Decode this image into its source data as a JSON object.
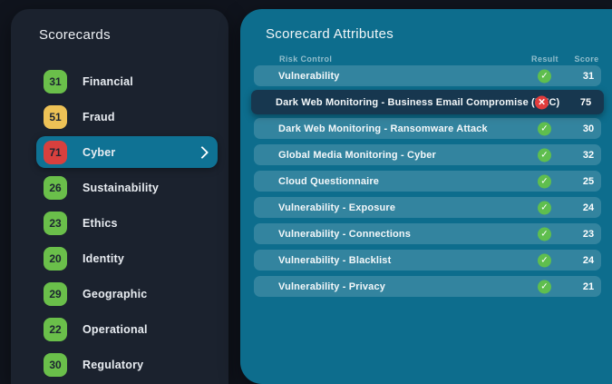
{
  "sidebar": {
    "title": "Scorecards",
    "items": [
      {
        "score": "31",
        "label": "Financial",
        "severity": "green",
        "selected": false
      },
      {
        "score": "51",
        "label": "Fraud",
        "severity": "amber",
        "selected": false
      },
      {
        "score": "71",
        "label": "Cyber",
        "severity": "red",
        "selected": true
      },
      {
        "score": "26",
        "label": "Sustainability",
        "severity": "green",
        "selected": false
      },
      {
        "score": "23",
        "label": "Ethics",
        "severity": "green",
        "selected": false
      },
      {
        "score": "20",
        "label": "Identity",
        "severity": "green",
        "selected": false
      },
      {
        "score": "29",
        "label": "Geographic",
        "severity": "green",
        "selected": false
      },
      {
        "score": "22",
        "label": "Operational",
        "severity": "green",
        "selected": false
      },
      {
        "score": "30",
        "label": "Regulatory",
        "severity": "green",
        "selected": false
      }
    ]
  },
  "main": {
    "title": "Scorecard Attributes",
    "columns": {
      "risk_control": "Risk Control",
      "result": "Result",
      "score": "Score"
    },
    "rows": [
      {
        "name": "Vulnerability",
        "result": "pass",
        "score": "31",
        "selected": false
      },
      {
        "name": "Dark Web Monitoring - Business Email Compromise (BEC)",
        "result": "fail",
        "score": "75",
        "selected": true
      },
      {
        "name": "Dark Web Monitoring - Ransomware Attack",
        "result": "pass",
        "score": "30",
        "selected": false
      },
      {
        "name": "Global Media Monitoring - Cyber",
        "result": "pass",
        "score": "32",
        "selected": false
      },
      {
        "name": "Cloud Questionnaire",
        "result": "pass",
        "score": "25",
        "selected": false
      },
      {
        "name": "Vulnerability - Exposure",
        "result": "pass",
        "score": "24",
        "selected": false
      },
      {
        "name": "Vulnerability - Connections",
        "result": "pass",
        "score": "23",
        "selected": false
      },
      {
        "name": "Vulnerability - Blacklist",
        "result": "pass",
        "score": "24",
        "selected": false
      },
      {
        "name": "Vulnerability - Privacy",
        "result": "pass",
        "score": "21",
        "selected": false
      }
    ]
  },
  "icons": {
    "pass": "check-circle",
    "fail": "x-circle",
    "selected_item": "chevron-right"
  },
  "colors": {
    "page_bg": "#10141d",
    "sidebar_bg": "#1b222e",
    "panel_teal": "#0d6d8d",
    "row_teal": "#2e7f9b",
    "selected_row_navy": "#17374f",
    "selected_item_teal": "#0f7294",
    "badge_green": "#6abf4a",
    "badge_amber": "#eec256",
    "badge_red": "#d8403e",
    "icon_pass_green": "#5fbe4e",
    "icon_fail_red": "#e13c3c"
  }
}
